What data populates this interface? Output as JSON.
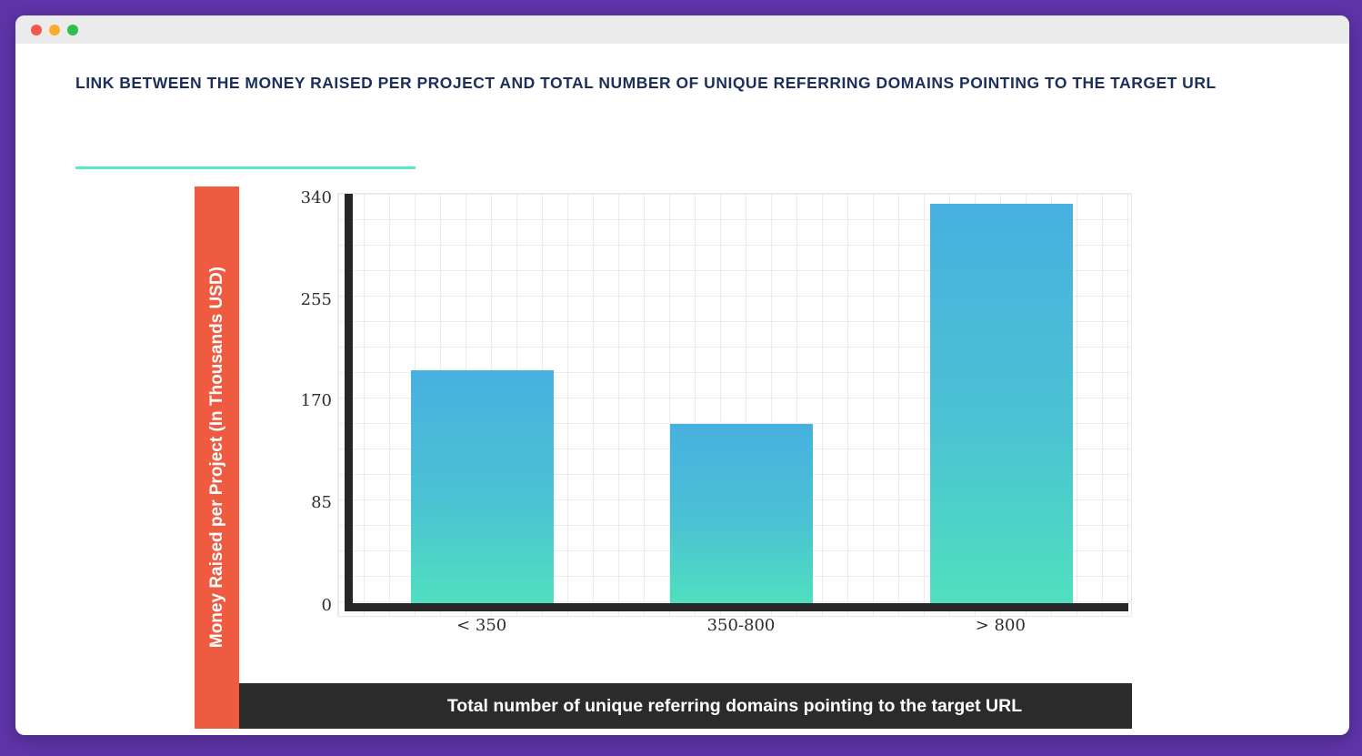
{
  "window": {
    "controls": {
      "close": "close",
      "minimize": "minimize",
      "maximize": "maximize"
    }
  },
  "chart_data": {
    "type": "bar",
    "title": "LINK BETWEEN THE MONEY RAISED PER PROJECT AND TOTAL NUMBER OF UNIQUE REFERRING DOMAINS POINTING TO THE TARGET URL",
    "categories": [
      "< 350",
      "350-800",
      "> 800"
    ],
    "values": [
      195,
      150,
      334
    ],
    "xlabel": "Total number of unique referring domains pointing to the target URL",
    "ylabel": "Money Raised per Project (In Thousands USD)",
    "yticks": [
      0,
      85,
      170,
      255,
      340
    ],
    "ylim": [
      0,
      340
    ],
    "grid": true,
    "legend": false,
    "colors": {
      "bar_gradient_top": "#48b0e0",
      "bar_gradient_bottom": "#4fe0bf",
      "ylabel_band_background": "#ee5b40",
      "xlabel_bar_background": "#2b2b2b",
      "title_text": "#1c2f5c",
      "title_underline": "#58eac4",
      "axis": "#262626",
      "gridline": "#ececec",
      "page_background": "#5e34a8"
    }
  }
}
